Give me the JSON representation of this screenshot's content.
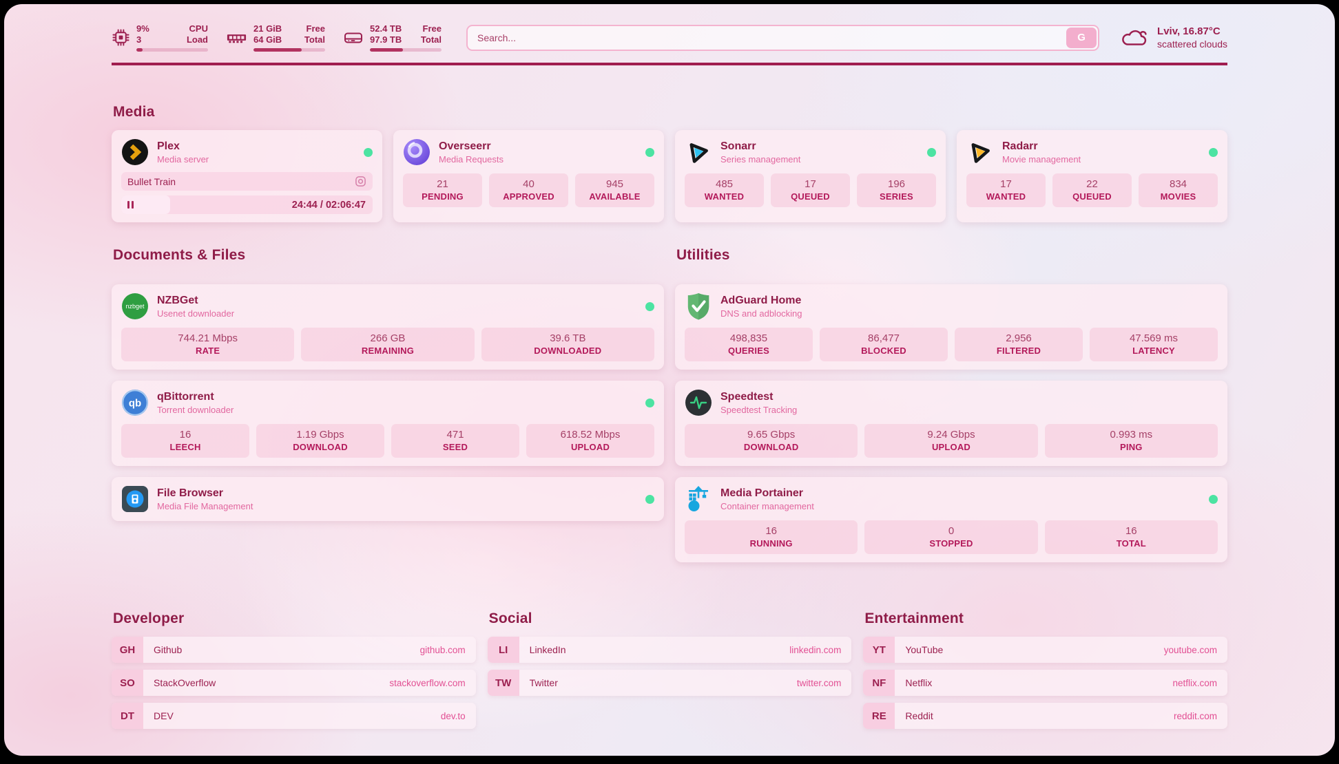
{
  "theme": {
    "accent": "#9c2050",
    "heading": "#8f1c48",
    "stat_label": "#b3195a",
    "subtitle_pink": "#e2679f",
    "link_pink": "#e24f93",
    "status_online": "#4ce3a2",
    "plex_gold": "#e5a00d",
    "sonarr_blue": "#2fc3f2",
    "radarr_amber": "#ffb83d",
    "nzbget_green": "#2f9e41",
    "qbittorrent_blue": "#3e7fd6",
    "adguard_green": "#62b772",
    "speedtest_pulse": "#38d183",
    "portainer_blue": "#18a6df",
    "filebrowser_blue": "#2499f3"
  },
  "icons": {
    "cpu": "cpu-chip",
    "memory": "ram-module",
    "disk": "hard-drive",
    "weather": "cloud-scattered",
    "pause": "pause-bars",
    "now_playing_glyph": "lens",
    "nzbget_glyph": "nzbget",
    "qbittorrent_glyph": "qb"
  },
  "topbar": {
    "cpu": {
      "line1": "9%",
      "line2": "3",
      "label1": "CPU",
      "label2": "Load",
      "fill": "9%"
    },
    "memory": {
      "line1": "21 GiB",
      "line2": "64 GiB",
      "label1": "Free",
      "label2": "Total",
      "fill": "67%"
    },
    "disk": {
      "line1": "52.4 TB",
      "line2": "97.9 TB",
      "label1": "Free",
      "label2": "Total",
      "fill": "46%"
    },
    "search": {
      "placeholder": "Search...",
      "provider": "G"
    },
    "weather": {
      "location": "Lviv, 16.87°C",
      "condition": "scattered clouds"
    }
  },
  "media": {
    "title": "Media",
    "plex": {
      "name": "Plex",
      "desc": "Media server",
      "status": "online",
      "now_playing": "Bullet Train",
      "time": "24:44 / 02:06:47",
      "progress": "19.5%"
    },
    "overseerr": {
      "name": "Overseerr",
      "desc": "Media Requests",
      "status": "online",
      "stats": [
        {
          "value": "21",
          "label": "PENDING"
        },
        {
          "value": "40",
          "label": "APPROVED"
        },
        {
          "value": "945",
          "label": "AVAILABLE"
        }
      ]
    },
    "sonarr": {
      "name": "Sonarr",
      "desc": "Series management",
      "status": "online",
      "stats": [
        {
          "value": "485",
          "label": "WANTED"
        },
        {
          "value": "17",
          "label": "QUEUED"
        },
        {
          "value": "196",
          "label": "SERIES"
        }
      ]
    },
    "radarr": {
      "name": "Radarr",
      "desc": "Movie management",
      "status": "online",
      "stats": [
        {
          "value": "17",
          "label": "WANTED"
        },
        {
          "value": "22",
          "label": "QUEUED"
        },
        {
          "value": "834",
          "label": "MOVIES"
        }
      ]
    }
  },
  "documents": {
    "title": "Documents & Files",
    "nzbget": {
      "name": "NZBGet",
      "desc": "Usenet downloader",
      "status": "online",
      "stats": [
        {
          "value": "744.21 Mbps",
          "label": "RATE"
        },
        {
          "value": "266 GB",
          "label": "REMAINING"
        },
        {
          "value": "39.6 TB",
          "label": "DOWNLOADED"
        }
      ]
    },
    "qbittorrent": {
      "name": "qBittorrent",
      "desc": "Torrent downloader",
      "status": "online",
      "stats": [
        {
          "value": "16",
          "label": "LEECH"
        },
        {
          "value": "1.19 Gbps",
          "label": "DOWNLOAD"
        },
        {
          "value": "471",
          "label": "SEED"
        },
        {
          "value": "618.52 Mbps",
          "label": "UPLOAD"
        }
      ]
    },
    "filebrowser": {
      "name": "File Browser",
      "desc": "Media File Management",
      "status": "online"
    }
  },
  "utilities": {
    "title": "Utilities",
    "adguard": {
      "name": "AdGuard Home",
      "desc": "DNS and adblocking",
      "stats": [
        {
          "value": "498,835",
          "label": "QUERIES"
        },
        {
          "value": "86,477",
          "label": "BLOCKED"
        },
        {
          "value": "2,956",
          "label": "FILTERED"
        },
        {
          "value": "47.569 ms",
          "label": "LATENCY"
        }
      ]
    },
    "speedtest": {
      "name": "Speedtest",
      "desc": "Speedtest Tracking",
      "stats": [
        {
          "value": "9.65 Gbps",
          "label": "DOWNLOAD"
        },
        {
          "value": "9.24 Gbps",
          "label": "UPLOAD"
        },
        {
          "value": "0.993 ms",
          "label": "PING"
        }
      ]
    },
    "portainer": {
      "name": "Media Portainer",
      "desc": "Container management",
      "status": "online",
      "stats": [
        {
          "value": "16",
          "label": "RUNNING"
        },
        {
          "value": "0",
          "label": "STOPPED"
        },
        {
          "value": "16",
          "label": "TOTAL"
        }
      ]
    }
  },
  "bookmarks": [
    {
      "title": "Developer",
      "items": [
        {
          "abbr": "GH",
          "name": "Github",
          "url": "github.com"
        },
        {
          "abbr": "SO",
          "name": "StackOverflow",
          "url": "stackoverflow.com"
        },
        {
          "abbr": "DT",
          "name": "DEV",
          "url": "dev.to"
        }
      ]
    },
    {
      "title": "Social",
      "items": [
        {
          "abbr": "LI",
          "name": "LinkedIn",
          "url": "linkedin.com"
        },
        {
          "abbr": "TW",
          "name": "Twitter",
          "url": "twitter.com"
        }
      ]
    },
    {
      "title": "Entertainment",
      "items": [
        {
          "abbr": "YT",
          "name": "YouTube",
          "url": "youtube.com"
        },
        {
          "abbr": "NF",
          "name": "Netflix",
          "url": "netflix.com"
        },
        {
          "abbr": "RE",
          "name": "Reddit",
          "url": "reddit.com"
        }
      ]
    }
  ]
}
